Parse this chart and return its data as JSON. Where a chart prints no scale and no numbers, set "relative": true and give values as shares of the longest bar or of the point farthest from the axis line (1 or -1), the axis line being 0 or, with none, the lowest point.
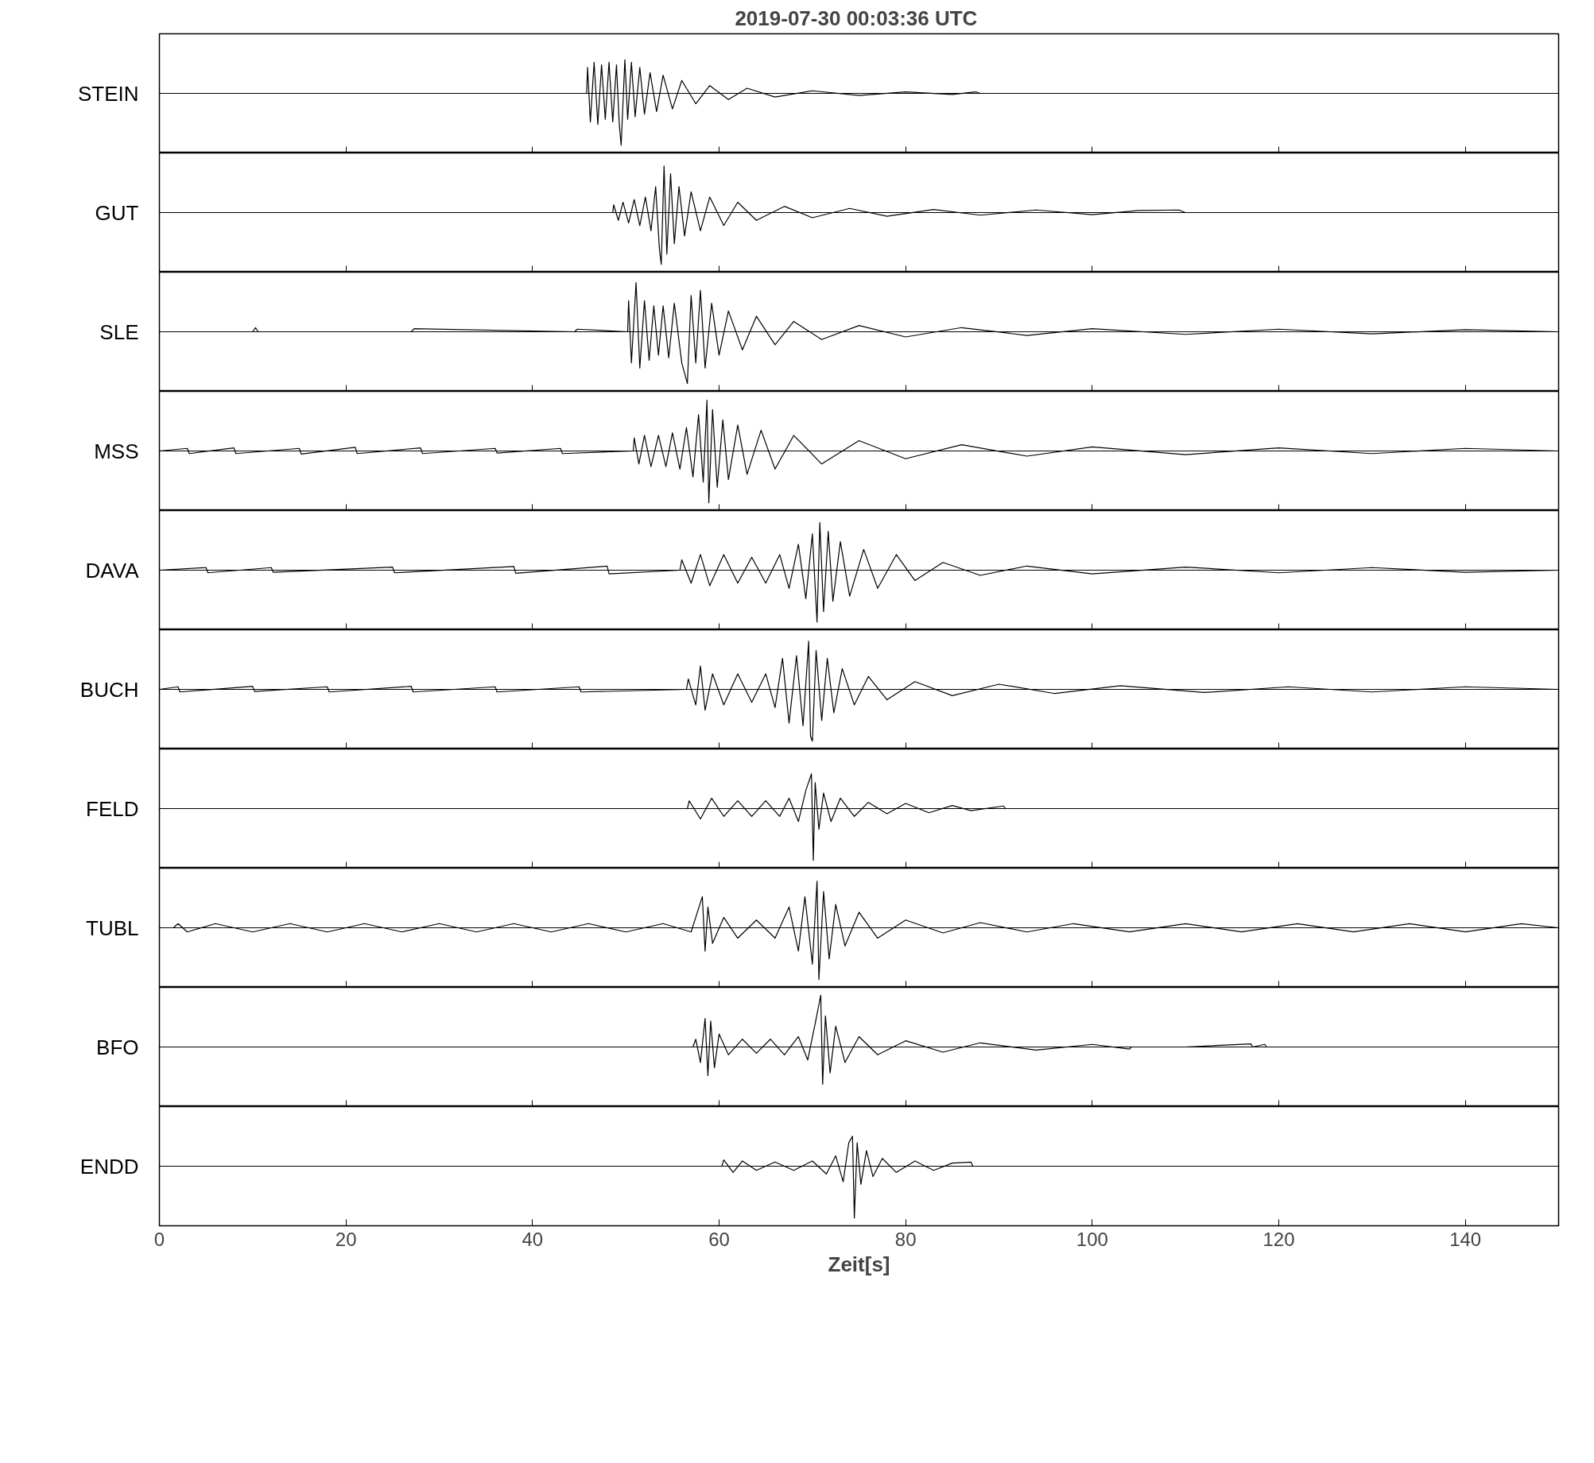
{
  "chart_data": [
    {
      "type": "line",
      "title": "2019-07-30  00:03:36 UTC",
      "ylabel": "STEIN",
      "relative": true,
      "xlim": [
        0,
        150
      ],
      "xticks": [
        0,
        20,
        40,
        60,
        80,
        100,
        120,
        140
      ],
      "tick_labels": false,
      "x": [
        0,
        45.8,
        45.9,
        46.2,
        46.6,
        47.0,
        47.4,
        47.8,
        48.2,
        48.6,
        49.0,
        49.3,
        49.5,
        49.9,
        50.2,
        50.6,
        51.0,
        51.5,
        52.0,
        52.6,
        53.3,
        54.0,
        55.0,
        56.0,
        57.5,
        59,
        61,
        63,
        66,
        70,
        75,
        80,
        85,
        87.5,
        88,
        150
      ],
      "series": [
        {
          "color": "#000000",
          "values": [
            0,
            0,
            0.5,
            -0.55,
            0.6,
            -0.6,
            0.55,
            -0.5,
            0.6,
            -0.55,
            0.55,
            -0.6,
            -1,
            0.65,
            -0.5,
            0.6,
            -0.45,
            0.5,
            -0.4,
            0.4,
            -0.35,
            0.35,
            -0.3,
            0.25,
            -0.2,
            0.15,
            -0.12,
            0.1,
            -0.07,
            0.05,
            -0.04,
            0.03,
            -0.02,
            0.03,
            0,
            0
          ]
        }
      ]
    },
    {
      "type": "line",
      "ylabel": "GUT",
      "relative": true,
      "xlim": [
        0,
        150
      ],
      "xticks": [
        0,
        20,
        40,
        60,
        80,
        100,
        120,
        140
      ],
      "tick_labels": false,
      "x": [
        0,
        48.6,
        48.7,
        49.2,
        49.7,
        50.3,
        50.9,
        51.5,
        52.1,
        52.7,
        53.2,
        53.6,
        53.8,
        54.1,
        54.4,
        54.8,
        55.2,
        55.7,
        56.3,
        57,
        58,
        59,
        60.5,
        62,
        64,
        67,
        70,
        74,
        78,
        83,
        88,
        94,
        100,
        105,
        109.3,
        110,
        150
      ],
      "series": [
        {
          "color": "#000000",
          "values": [
            0,
            0,
            0.15,
            -0.15,
            0.2,
            -0.2,
            0.25,
            -0.25,
            0.3,
            -0.35,
            0.5,
            -0.7,
            -1,
            0.9,
            -0.8,
            0.75,
            -0.6,
            0.5,
            -0.45,
            0.4,
            -0.35,
            0.3,
            -0.25,
            0.2,
            -0.15,
            0.12,
            -0.1,
            0.08,
            -0.07,
            0.06,
            -0.05,
            0.05,
            -0.04,
            0.04,
            0.05,
            0,
            0
          ]
        }
      ]
    },
    {
      "type": "line",
      "ylabel": "SLE",
      "relative": true,
      "xlim": [
        0,
        150
      ],
      "xticks": [
        0,
        20,
        40,
        60,
        80,
        100,
        120,
        140
      ],
      "tick_labels": false,
      "x": [
        0,
        10,
        10.3,
        10.6,
        27,
        27.3,
        44.5,
        44.8,
        50.2,
        50.3,
        50.6,
        51.1,
        51.5,
        52,
        52.5,
        53,
        53.5,
        54,
        54.6,
        55.2,
        56,
        56.6,
        57,
        57.5,
        58,
        58.5,
        59.2,
        60,
        61,
        62.5,
        64,
        66,
        68,
        71,
        75,
        80,
        86,
        93,
        100,
        110,
        120,
        130,
        140,
        150
      ],
      "series": [
        {
          "color": "#000000",
          "values": [
            0,
            0,
            0.08,
            0,
            0,
            0.06,
            0,
            0.05,
            0,
            0.6,
            -0.6,
            0.95,
            -0.7,
            0.6,
            -0.55,
            0.5,
            -0.45,
            0.5,
            -0.5,
            0.55,
            -0.6,
            -1,
            0.7,
            -0.6,
            0.8,
            -0.7,
            0.55,
            -0.45,
            0.4,
            -0.35,
            0.3,
            -0.25,
            0.2,
            -0.15,
            0.12,
            -0.1,
            0.08,
            -0.07,
            0.06,
            -0.05,
            0.05,
            -0.04,
            0.04,
            0
          ]
        }
      ]
    },
    {
      "type": "line",
      "ylabel": "MSS",
      "relative": true,
      "xlim": [
        0,
        150
      ],
      "xticks": [
        0,
        20,
        40,
        60,
        80,
        100,
        120,
        140
      ],
      "tick_labels": false,
      "x": [
        0,
        3,
        3.2,
        8,
        8.2,
        15,
        15.2,
        21,
        21.2,
        28,
        28.2,
        36,
        36.2,
        43,
        43.2,
        50.8,
        50.9,
        51.4,
        52,
        52.7,
        53.5,
        54.3,
        55,
        55.8,
        56.5,
        57.2,
        57.8,
        58.3,
        58.7,
        58.9,
        59.3,
        59.8,
        60.4,
        61,
        62,
        63,
        64.5,
        66,
        68,
        71,
        75,
        80,
        86,
        93,
        100,
        110,
        120,
        130,
        140,
        150
      ],
      "series": [
        {
          "color": "#000000",
          "values": [
            0,
            0.05,
            -0.05,
            0.06,
            -0.05,
            0.05,
            -0.06,
            0.07,
            -0.05,
            0.06,
            -0.05,
            0.05,
            -0.04,
            0.05,
            -0.05,
            0,
            0.25,
            -0.25,
            0.3,
            -0.3,
            0.3,
            -0.3,
            0.35,
            -0.35,
            0.45,
            -0.5,
            0.7,
            -0.6,
            0.98,
            -1,
            0.8,
            -0.7,
            0.6,
            -0.55,
            0.5,
            -0.45,
            0.4,
            -0.35,
            0.3,
            -0.25,
            0.2,
            -0.15,
            0.12,
            -0.1,
            0.08,
            -0.07,
            0.06,
            -0.05,
            0.05,
            0
          ]
        }
      ]
    },
    {
      "type": "line",
      "ylabel": "DAVA",
      "relative": true,
      "xlim": [
        0,
        150
      ],
      "xticks": [
        0,
        20,
        40,
        60,
        80,
        100,
        120,
        140
      ],
      "tick_labels": false,
      "x": [
        0,
        5,
        5.2,
        12,
        12.2,
        25,
        25.2,
        38,
        38.2,
        48,
        48.2,
        55.8,
        56,
        57,
        58,
        59,
        60.5,
        62,
        63.5,
        65,
        66.5,
        67.5,
        68.5,
        69.3,
        70,
        70.5,
        70.8,
        71.2,
        71.7,
        72.2,
        73,
        74,
        75.5,
        77,
        79,
        81,
        84,
        88,
        93,
        100,
        110,
        120,
        130,
        140,
        150
      ],
      "series": [
        {
          "color": "#000000",
          "values": [
            0,
            0.05,
            -0.05,
            0.05,
            -0.04,
            0.06,
            -0.05,
            0.07,
            -0.06,
            0.08,
            -0.07,
            0,
            0.2,
            -0.25,
            0.3,
            -0.3,
            0.3,
            -0.25,
            0.25,
            -0.25,
            0.3,
            -0.35,
            0.5,
            -0.55,
            0.7,
            -1,
            0.92,
            -0.8,
            0.75,
            -0.6,
            0.55,
            -0.5,
            0.4,
            -0.35,
            0.3,
            -0.2,
            0.15,
            -0.1,
            0.08,
            -0.07,
            0.06,
            -0.05,
            0.05,
            -0.04,
            0
          ]
        }
      ]
    },
    {
      "type": "line",
      "ylabel": "BUCH",
      "relative": true,
      "xlim": [
        0,
        150
      ],
      "xticks": [
        0,
        20,
        40,
        60,
        80,
        100,
        120,
        140
      ],
      "tick_labels": false,
      "x": [
        0,
        2,
        2.2,
        10,
        10.2,
        18,
        18.2,
        27,
        27.2,
        36,
        36.2,
        45,
        45.2,
        56.5,
        56.7,
        57.5,
        58,
        58.5,
        59.3,
        60.5,
        62,
        63.5,
        65,
        66,
        66.8,
        67.5,
        68.3,
        69,
        69.6,
        69.8,
        70,
        70.4,
        71,
        71.6,
        72.3,
        73.2,
        74.5,
        76,
        78,
        81,
        85,
        90,
        96,
        103,
        112,
        121,
        130,
        140,
        150
      ],
      "series": [
        {
          "color": "#000000",
          "values": [
            0,
            0.05,
            -0.05,
            0.06,
            -0.04,
            0.05,
            -0.05,
            0.06,
            -0.05,
            0.05,
            -0.05,
            0.05,
            -0.05,
            0,
            0.2,
            -0.3,
            0.45,
            -0.4,
            0.3,
            -0.3,
            0.3,
            -0.25,
            0.3,
            -0.35,
            0.6,
            -0.65,
            0.65,
            -0.7,
            0.93,
            -0.9,
            -1,
            0.75,
            -0.6,
            0.6,
            -0.45,
            0.4,
            -0.3,
            0.25,
            -0.2,
            0.15,
            -0.12,
            0.1,
            -0.08,
            0.07,
            -0.06,
            0.05,
            -0.05,
            0.05,
            0
          ]
        }
      ]
    },
    {
      "type": "line",
      "ylabel": "FELD",
      "relative": true,
      "xlim": [
        0,
        150
      ],
      "xticks": [
        0,
        20,
        40,
        60,
        80,
        100,
        120,
        140
      ],
      "tick_labels": false,
      "x": [
        0,
        56.6,
        56.8,
        58,
        59.2,
        60.5,
        62,
        63.5,
        65,
        66.5,
        67.5,
        68.5,
        69.3,
        69.9,
        70.1,
        70.3,
        70.7,
        71.2,
        72,
        73,
        74.5,
        76,
        78,
        80,
        82.5,
        85,
        87,
        90.5,
        90.7,
        150
      ],
      "series": [
        {
          "color": "#000000",
          "values": [
            0,
            0,
            0.15,
            -0.2,
            0.2,
            -0.15,
            0.15,
            -0.15,
            0.15,
            -0.15,
            0.2,
            -0.25,
            0.35,
            0.67,
            -1,
            0.5,
            -0.4,
            0.3,
            -0.25,
            0.2,
            -0.15,
            0.12,
            -0.1,
            0.1,
            -0.08,
            0.06,
            -0.04,
            0.05,
            0,
            0
          ]
        }
      ]
    },
    {
      "type": "line",
      "ylabel": "TUBL",
      "relative": true,
      "xlim": [
        0,
        150
      ],
      "xticks": [
        0,
        20,
        40,
        60,
        80,
        100,
        120,
        140
      ],
      "tick_labels": false,
      "x": [
        1.5,
        2,
        3,
        6,
        10,
        14,
        18,
        22,
        26,
        30,
        34,
        38,
        42,
        46,
        50,
        54,
        57,
        58.2,
        58.5,
        58.8,
        59.3,
        60.5,
        62,
        64,
        66,
        67.5,
        68.5,
        69.2,
        70,
        70.5,
        70.7,
        71.2,
        71.8,
        72.5,
        73.5,
        75,
        77,
        80,
        84,
        88,
        93,
        98,
        104,
        110,
        116,
        122,
        128,
        134,
        140,
        146,
        150
      ],
      "series": [
        {
          "color": "#000000",
          "values": [
            0,
            0.08,
            -0.08,
            0.08,
            -0.08,
            0.08,
            -0.08,
            0.08,
            -0.08,
            0.08,
            -0.08,
            0.08,
            -0.08,
            0.08,
            -0.08,
            0.08,
            -0.08,
            0.6,
            -0.45,
            0.4,
            -0.3,
            0.2,
            -0.2,
            0.15,
            -0.2,
            0.4,
            -0.45,
            0.6,
            -0.7,
            0.9,
            -1,
            0.7,
            -0.6,
            0.45,
            -0.35,
            0.3,
            -0.2,
            0.15,
            -0.1,
            0.1,
            -0.08,
            0.08,
            -0.08,
            0.08,
            -0.08,
            0.08,
            -0.08,
            0.08,
            -0.08,
            0.08,
            0
          ]
        }
      ]
    },
    {
      "type": "line",
      "ylabel": "BFO",
      "relative": true,
      "xlim": [
        0,
        150
      ],
      "xticks": [
        0,
        20,
        40,
        60,
        80,
        100,
        120,
        140
      ],
      "tick_labels": false,
      "x": [
        0,
        57.2,
        57.5,
        58,
        58.5,
        58.8,
        59.1,
        59.5,
        60,
        61,
        62.5,
        64,
        65.5,
        67,
        68.5,
        69.5,
        70.3,
        70.9,
        71.1,
        71.4,
        71.9,
        72.5,
        73.5,
        75,
        77,
        80,
        84,
        88,
        94,
        100,
        104,
        104.2,
        110,
        117,
        117.2,
        118.5,
        118.7,
        150
      ],
      "series": [
        {
          "color": "#000000",
          "values": [
            0,
            0,
            0.15,
            -0.3,
            0.55,
            -0.55,
            0.5,
            -0.4,
            0.25,
            -0.15,
            0.15,
            -0.12,
            0.15,
            -0.15,
            0.2,
            -0.25,
            0.45,
            1,
            -0.72,
            0.6,
            -0.5,
            0.4,
            -0.3,
            0.2,
            -0.15,
            0.12,
            -0.1,
            0.08,
            -0.06,
            0.05,
            -0.04,
            0,
            0,
            0.06,
            0,
            0.05,
            0,
            0
          ]
        }
      ]
    },
    {
      "type": "line",
      "ylabel": "ENDD",
      "xlabel": "Zeit[s]",
      "relative": true,
      "xlim": [
        0,
        150
      ],
      "xticks": [
        0,
        20,
        40,
        60,
        80,
        100,
        120,
        140
      ],
      "tick_labels": "x",
      "x": [
        0,
        60.3,
        60.5,
        61.5,
        62.5,
        64,
        66,
        68,
        70,
        71.5,
        72.5,
        73.3,
        73.9,
        74.3,
        74.5,
        74.8,
        75.2,
        75.8,
        76.5,
        77.5,
        79,
        81,
        83,
        85,
        87,
        87.2,
        150
      ],
      "series": [
        {
          "color": "#000000",
          "values": [
            0,
            0,
            0.12,
            -0.12,
            0.1,
            -0.08,
            0.08,
            -0.08,
            0.1,
            -0.15,
            0.2,
            -0.3,
            0.45,
            0.58,
            -1,
            0.45,
            -0.35,
            0.3,
            -0.2,
            0.15,
            -0.12,
            0.1,
            -0.08,
            0.06,
            0.08,
            0,
            0
          ]
        }
      ]
    }
  ]
}
